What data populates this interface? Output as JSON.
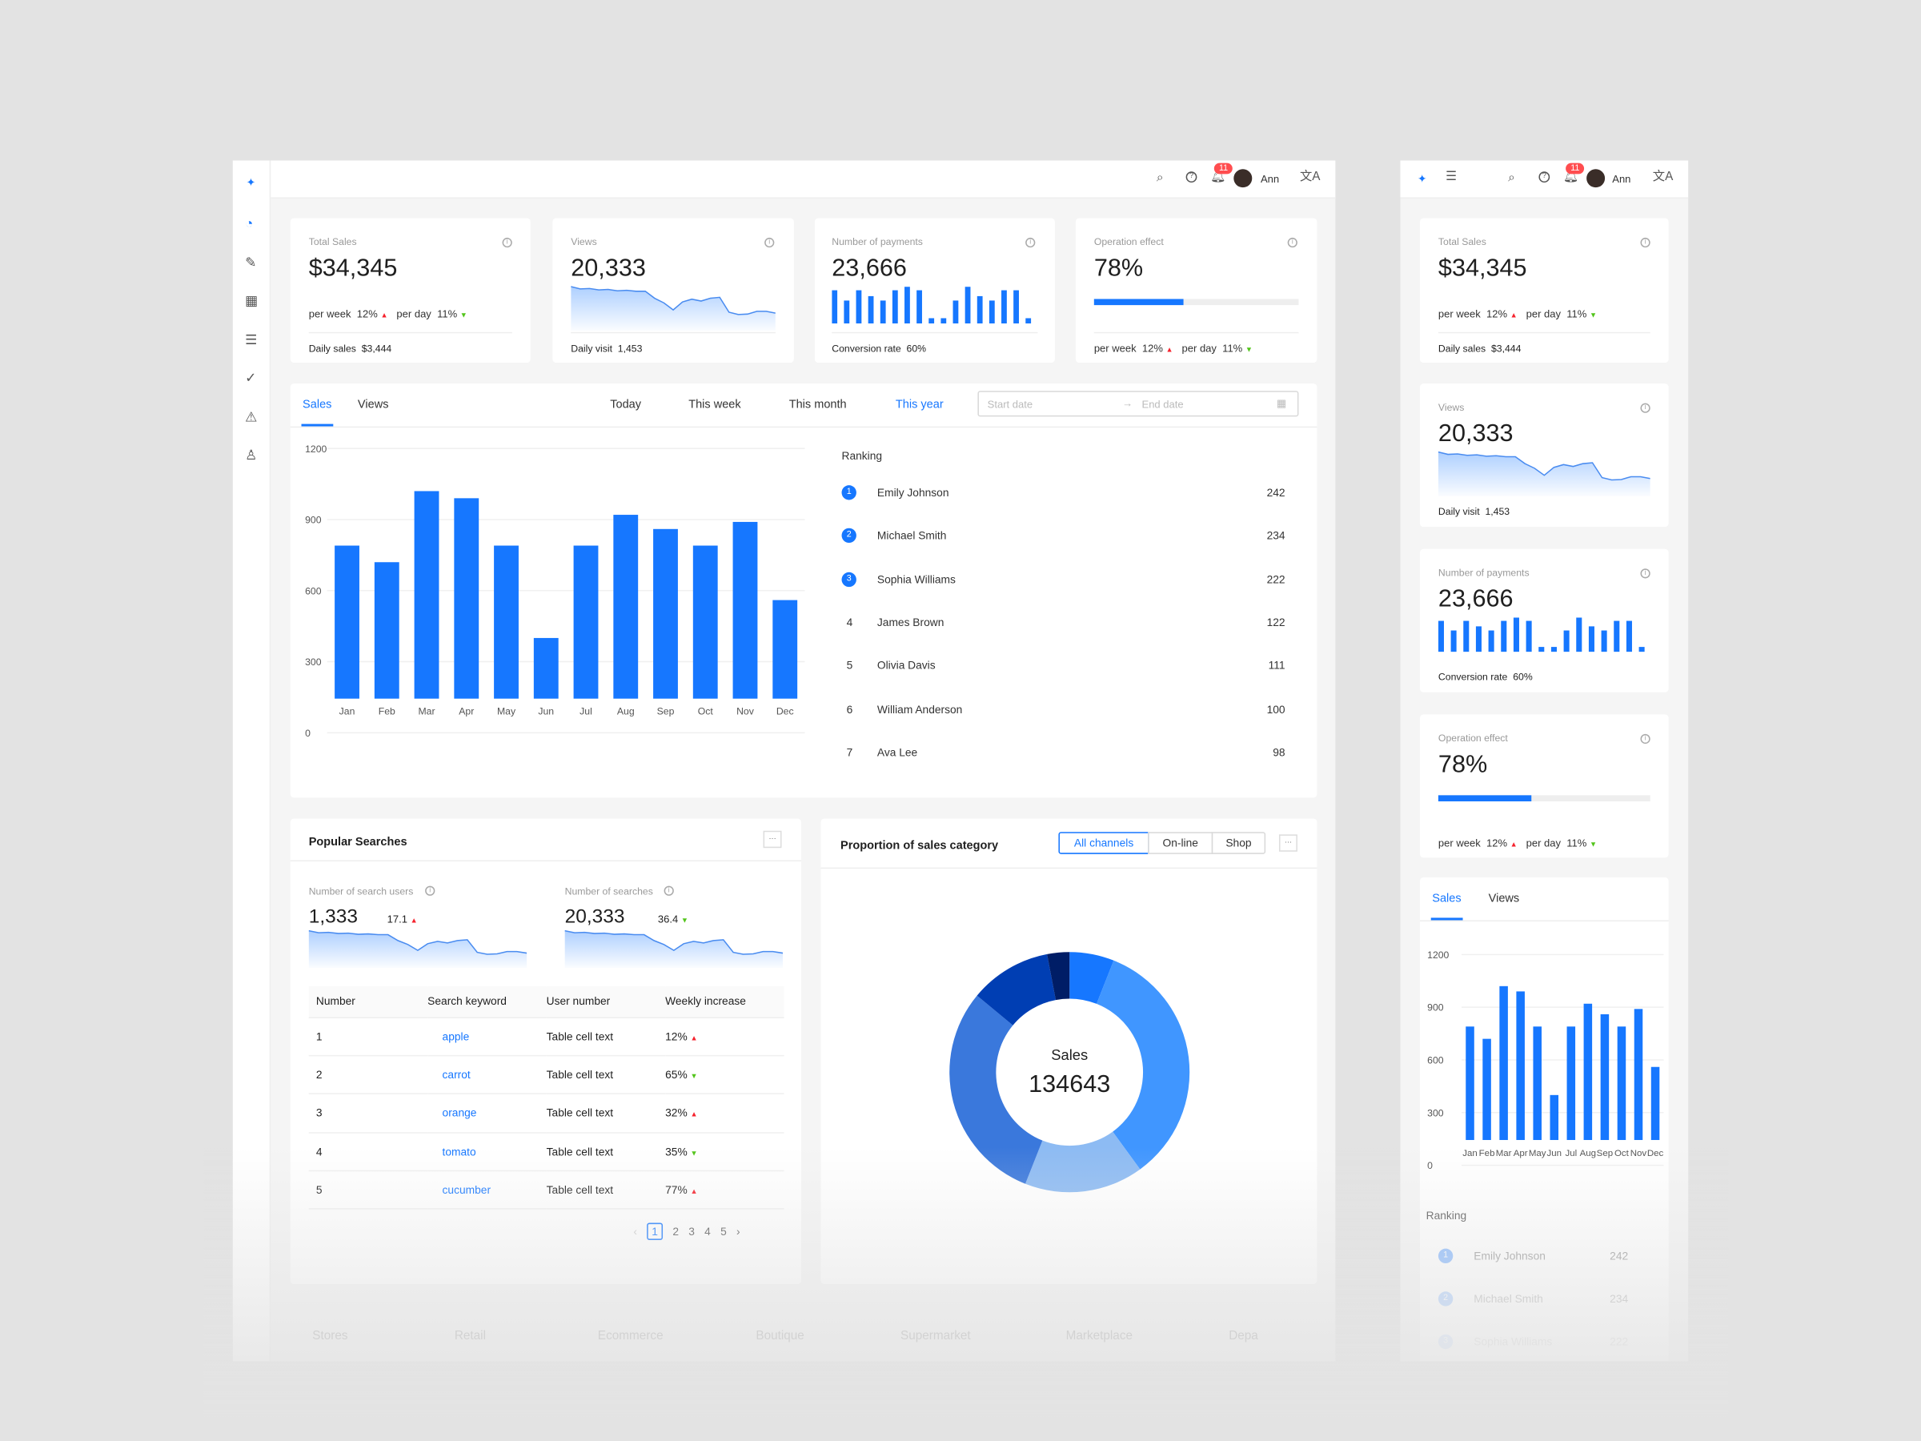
{
  "colors": {
    "accent": "#1677ff",
    "up": "#f5222d",
    "down": "#52c41a"
  },
  "topbar": {
    "user": "Ann",
    "notifications": "11",
    "icons": [
      "search-icon",
      "help-icon",
      "bell-icon",
      "avatar",
      "translate-icon"
    ]
  },
  "sidebar": {
    "items": [
      "dashboard-icon",
      "form-icon",
      "table-icon",
      "list-icon",
      "check-circle-icon",
      "warning-icon",
      "user-icon"
    ]
  },
  "cards": {
    "sales": {
      "label": "Total Sales",
      "value": "$34,345",
      "week_label": "per week",
      "week": "12%",
      "day_label": "per day",
      "day": "11%",
      "footer_label": "Daily sales",
      "footer": "$3,444"
    },
    "views": {
      "label": "Views",
      "value": "20,333",
      "footer_label": "Daily visit",
      "footer": "1,453",
      "trend": [
        95,
        90,
        91,
        88,
        89,
        86,
        87,
        85,
        85,
        70,
        60,
        45,
        62,
        68,
        64,
        70,
        72,
        40,
        35,
        36,
        42,
        42,
        38
      ]
    },
    "payments": {
      "label": "Number of payments",
      "value": "23,666",
      "footer_label": "Conversion rate",
      "footer": "60%",
      "bars": [
        113,
        78,
        113,
        93,
        78,
        113,
        125,
        113,
        18,
        18,
        78,
        125,
        93,
        78,
        113,
        113,
        18
      ]
    },
    "operation": {
      "label": "Operation effect",
      "value": "78%",
      "progress": 0.44,
      "week_label": "per week",
      "week": "12%",
      "day_label": "per day",
      "day": "11%"
    }
  },
  "sales_panel": {
    "tabs": [
      "Sales",
      "Views"
    ],
    "ranges": [
      "Today",
      "This week",
      "This month",
      "This year"
    ],
    "start_placeholder": "Start date",
    "end_placeholder": "End date",
    "ranking_title": "Ranking",
    "ranking": [
      {
        "n": "1",
        "name": "Emily Johnson",
        "v": "242"
      },
      {
        "n": "2",
        "name": "Michael Smith",
        "v": "234"
      },
      {
        "n": "3",
        "name": "Sophia Williams",
        "v": "222"
      },
      {
        "n": "4",
        "name": "James Brown",
        "v": "122"
      },
      {
        "n": "5",
        "name": "Olivia Davis",
        "v": "111"
      },
      {
        "n": "6",
        "name": "William Anderson",
        "v": "100"
      },
      {
        "n": "7",
        "name": "Ava Lee",
        "v": "98"
      }
    ]
  },
  "chart_data": {
    "type": "bar",
    "categories": [
      "Jan",
      "Feb",
      "Mar",
      "Apr",
      "May",
      "Jun",
      "Jul",
      "Aug",
      "Sep",
      "Oct",
      "Nov",
      "Dec"
    ],
    "values": [
      790,
      720,
      1020,
      990,
      790,
      400,
      790,
      920,
      860,
      790,
      890,
      560
    ],
    "yticks": [
      "0",
      "300",
      "600",
      "900",
      "1200"
    ],
    "ylim": [
      0,
      1200
    ],
    "grid": true
  },
  "searches": {
    "title": "Popular Searches",
    "more": "···",
    "users": {
      "label": "Number of search users",
      "value": "1,333",
      "delta": "17.1"
    },
    "count": {
      "label": "Number of searches",
      "value": "20,333",
      "delta": "36.4"
    },
    "columns": [
      "Number",
      "Search keyword",
      "User number",
      "Weekly increase"
    ],
    "rows": [
      {
        "n": "1",
        "kw": "apple",
        "u": "Table cell text",
        "w": "12%",
        "dir": "up"
      },
      {
        "n": "2",
        "kw": "carrot",
        "u": "Table cell text",
        "w": "65%",
        "dir": "down"
      },
      {
        "n": "3",
        "kw": "orange",
        "u": "Table cell text",
        "w": "32%",
        "dir": "up"
      },
      {
        "n": "4",
        "kw": "tomato",
        "u": "Table cell text",
        "w": "35%",
        "dir": "down"
      },
      {
        "n": "5",
        "kw": "cucumber",
        "u": "Table cell text",
        "w": "77%",
        "dir": "up"
      }
    ],
    "pages": [
      "1",
      "2",
      "3",
      "4",
      "5"
    ],
    "current_page": "1"
  },
  "proportion": {
    "title": "Proportion of sales category",
    "segments": [
      "All channels",
      "On-line",
      "Shop"
    ],
    "more": "···",
    "center_label": "Sales",
    "center_value": "134643",
    "slices": [
      6,
      34,
      16,
      30,
      11,
      3
    ],
    "slice_colors": [
      "#1677ff",
      "#4096ff",
      "#8dbbf3",
      "#3a78dc",
      "#003eb3",
      "#001d66"
    ]
  },
  "footer_tabs": [
    "Stores",
    "Retail",
    "Ecommerce",
    "Boutique",
    "Supermarket",
    "Marketplace",
    "Depa"
  ]
}
